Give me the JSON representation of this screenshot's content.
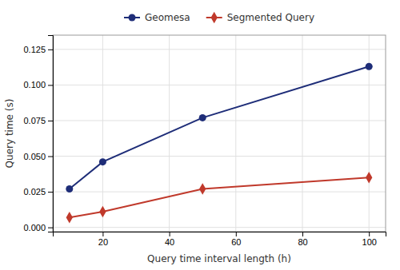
{
  "chart_data": {
    "type": "line",
    "x": [
      10,
      20,
      50,
      100
    ],
    "series": [
      {
        "name": "Geomesa",
        "color": "#1e2d78",
        "marker": "circle",
        "values": [
          0.027,
          0.046,
          0.077,
          0.113
        ]
      },
      {
        "name": "Segmented Query",
        "color": "#c0392b",
        "marker": "diamond",
        "values": [
          0.007,
          0.011,
          0.027,
          0.035
        ]
      }
    ],
    "xlabel": "Query time interval length (h)",
    "ylabel": "Query time (s)",
    "xlim": [
      5,
      105
    ],
    "ylim": [
      -0.003,
      0.135
    ],
    "xticks": [
      20,
      40,
      60,
      80,
      100
    ],
    "yticks": [
      {
        "value": 0.0,
        "label": "0.000"
      },
      0.025,
      {
        "value": 0.05,
        "label": "0.050"
      },
      0.075,
      {
        "value": 0.1,
        "label": "0.100"
      },
      0.125
    ],
    "grid": true,
    "legend": "top"
  }
}
